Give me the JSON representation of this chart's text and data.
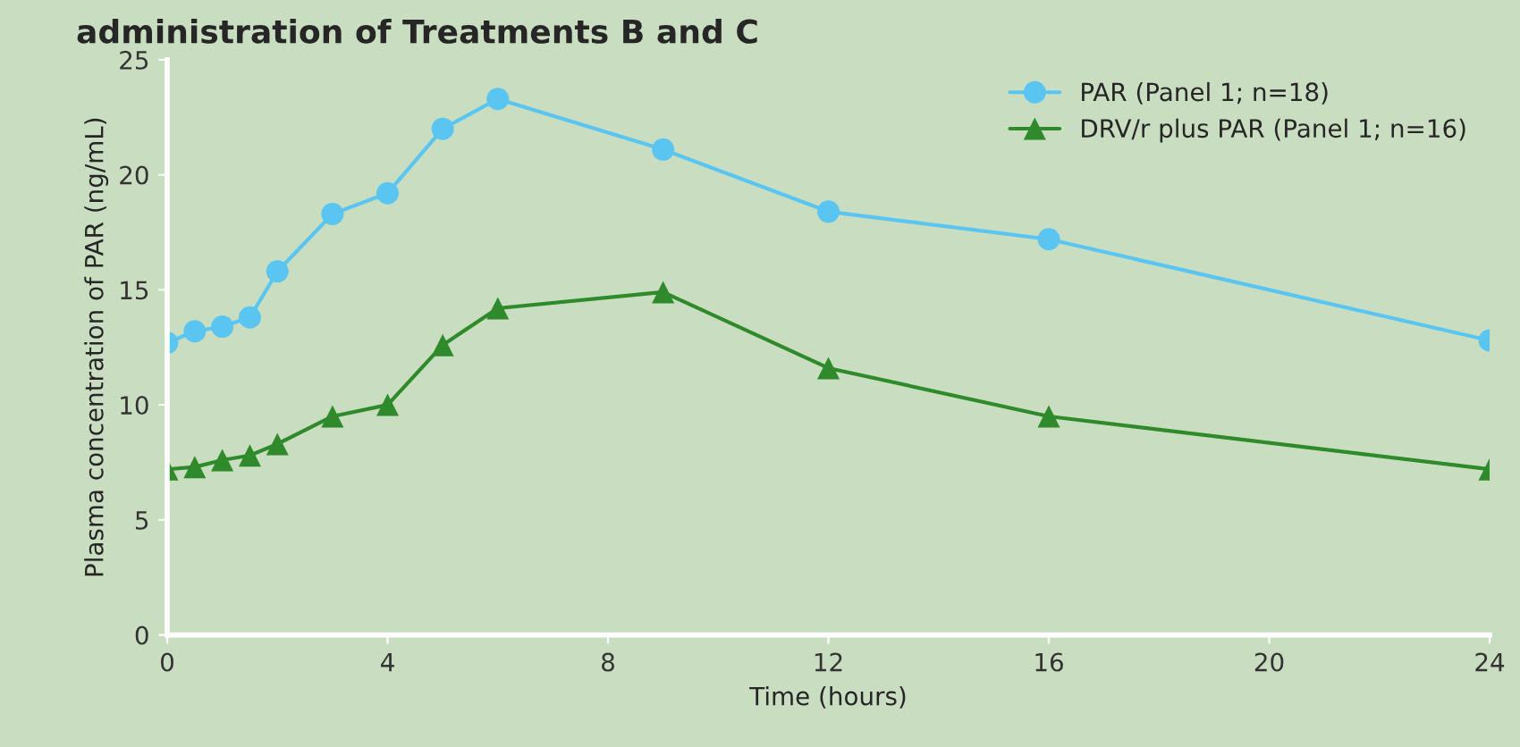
{
  "chart_data": {
    "type": "line",
    "title": "administration of Treatments B and C",
    "xlabel": "Time (hours)",
    "ylabel": "Plasma concentration of PAR (ng/mL)",
    "x": [
      0,
      0.5,
      1,
      1.5,
      2,
      3,
      4,
      5,
      6,
      9,
      12,
      16,
      24
    ],
    "series": [
      {
        "name": "PAR (Panel 1; n=18)",
        "color": "#5bc5f2",
        "marker": "circle",
        "values": [
          12.7,
          13.2,
          13.4,
          13.8,
          15.8,
          18.3,
          19.2,
          22.0,
          23.3,
          21.1,
          18.4,
          17.2,
          12.8
        ]
      },
      {
        "name": "DRV/r plus PAR (Panel 1; n=16)",
        "color": "#2e8a2a",
        "marker": "triangle",
        "values": [
          7.2,
          7.3,
          7.6,
          7.8,
          8.3,
          9.5,
          10.0,
          12.6,
          14.2,
          14.9,
          11.6,
          9.5,
          7.2
        ]
      }
    ],
    "xlim": [
      0,
      24
    ],
    "xticks": [
      0,
      4,
      8,
      12,
      16,
      20,
      24
    ],
    "ylim": [
      0,
      25
    ],
    "yticks": [
      0,
      5,
      10,
      15,
      20,
      25
    ],
    "grid": false,
    "legend": "top right",
    "line_style": "solid"
  }
}
